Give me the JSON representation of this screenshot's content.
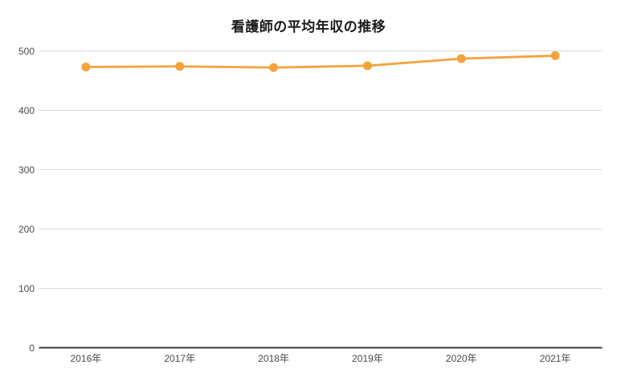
{
  "chart_data": {
    "type": "line",
    "title": "看護師の平均年収の推移",
    "categories": [
      "2016年",
      "2017年",
      "2018年",
      "2019年",
      "2020年",
      "2021年"
    ],
    "values": [
      473,
      474,
      472,
      475,
      487,
      492
    ],
    "xlabel": "",
    "ylabel": "",
    "ylim": [
      0,
      500
    ],
    "yticks": [
      0,
      100,
      200,
      300,
      400,
      500
    ],
    "grid": true,
    "legend_position": "none",
    "colors": {
      "line": "#F2A33C",
      "point": "#F2A33C",
      "grid": "#D8D8D8",
      "axis": "#3C3C3C",
      "tick_label": "#4A4A4A",
      "title": "#1A1A1A",
      "background": "#FFFFFF"
    }
  }
}
